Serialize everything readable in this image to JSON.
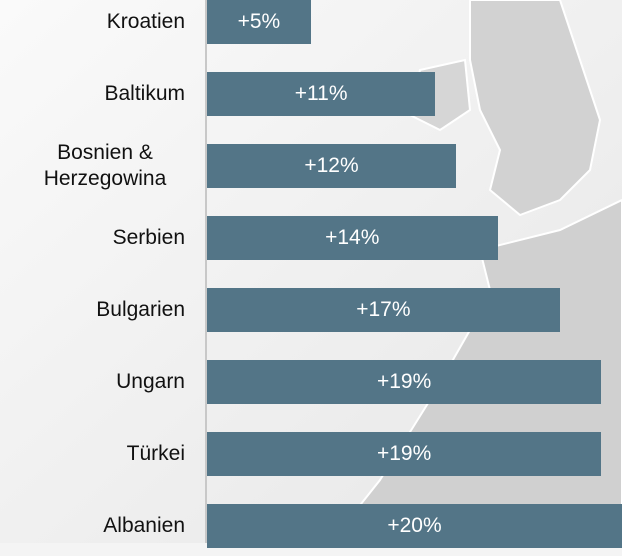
{
  "chart_data": {
    "type": "barh",
    "categories": [
      "Kroatien",
      "Baltikum",
      "Bosnien & Herzegowina",
      "Serbien",
      "Bulgarien",
      "Ungarn",
      "Türkei",
      "Albanien"
    ],
    "values": [
      5,
      11,
      12,
      14,
      17,
      19,
      19,
      20
    ],
    "value_labels": [
      "+5%",
      "+11%",
      "+12%",
      "+14%",
      "+17%",
      "+19%",
      "+19%",
      "+20%"
    ],
    "color": "#537587",
    "xlim": [
      0,
      20
    ]
  }
}
